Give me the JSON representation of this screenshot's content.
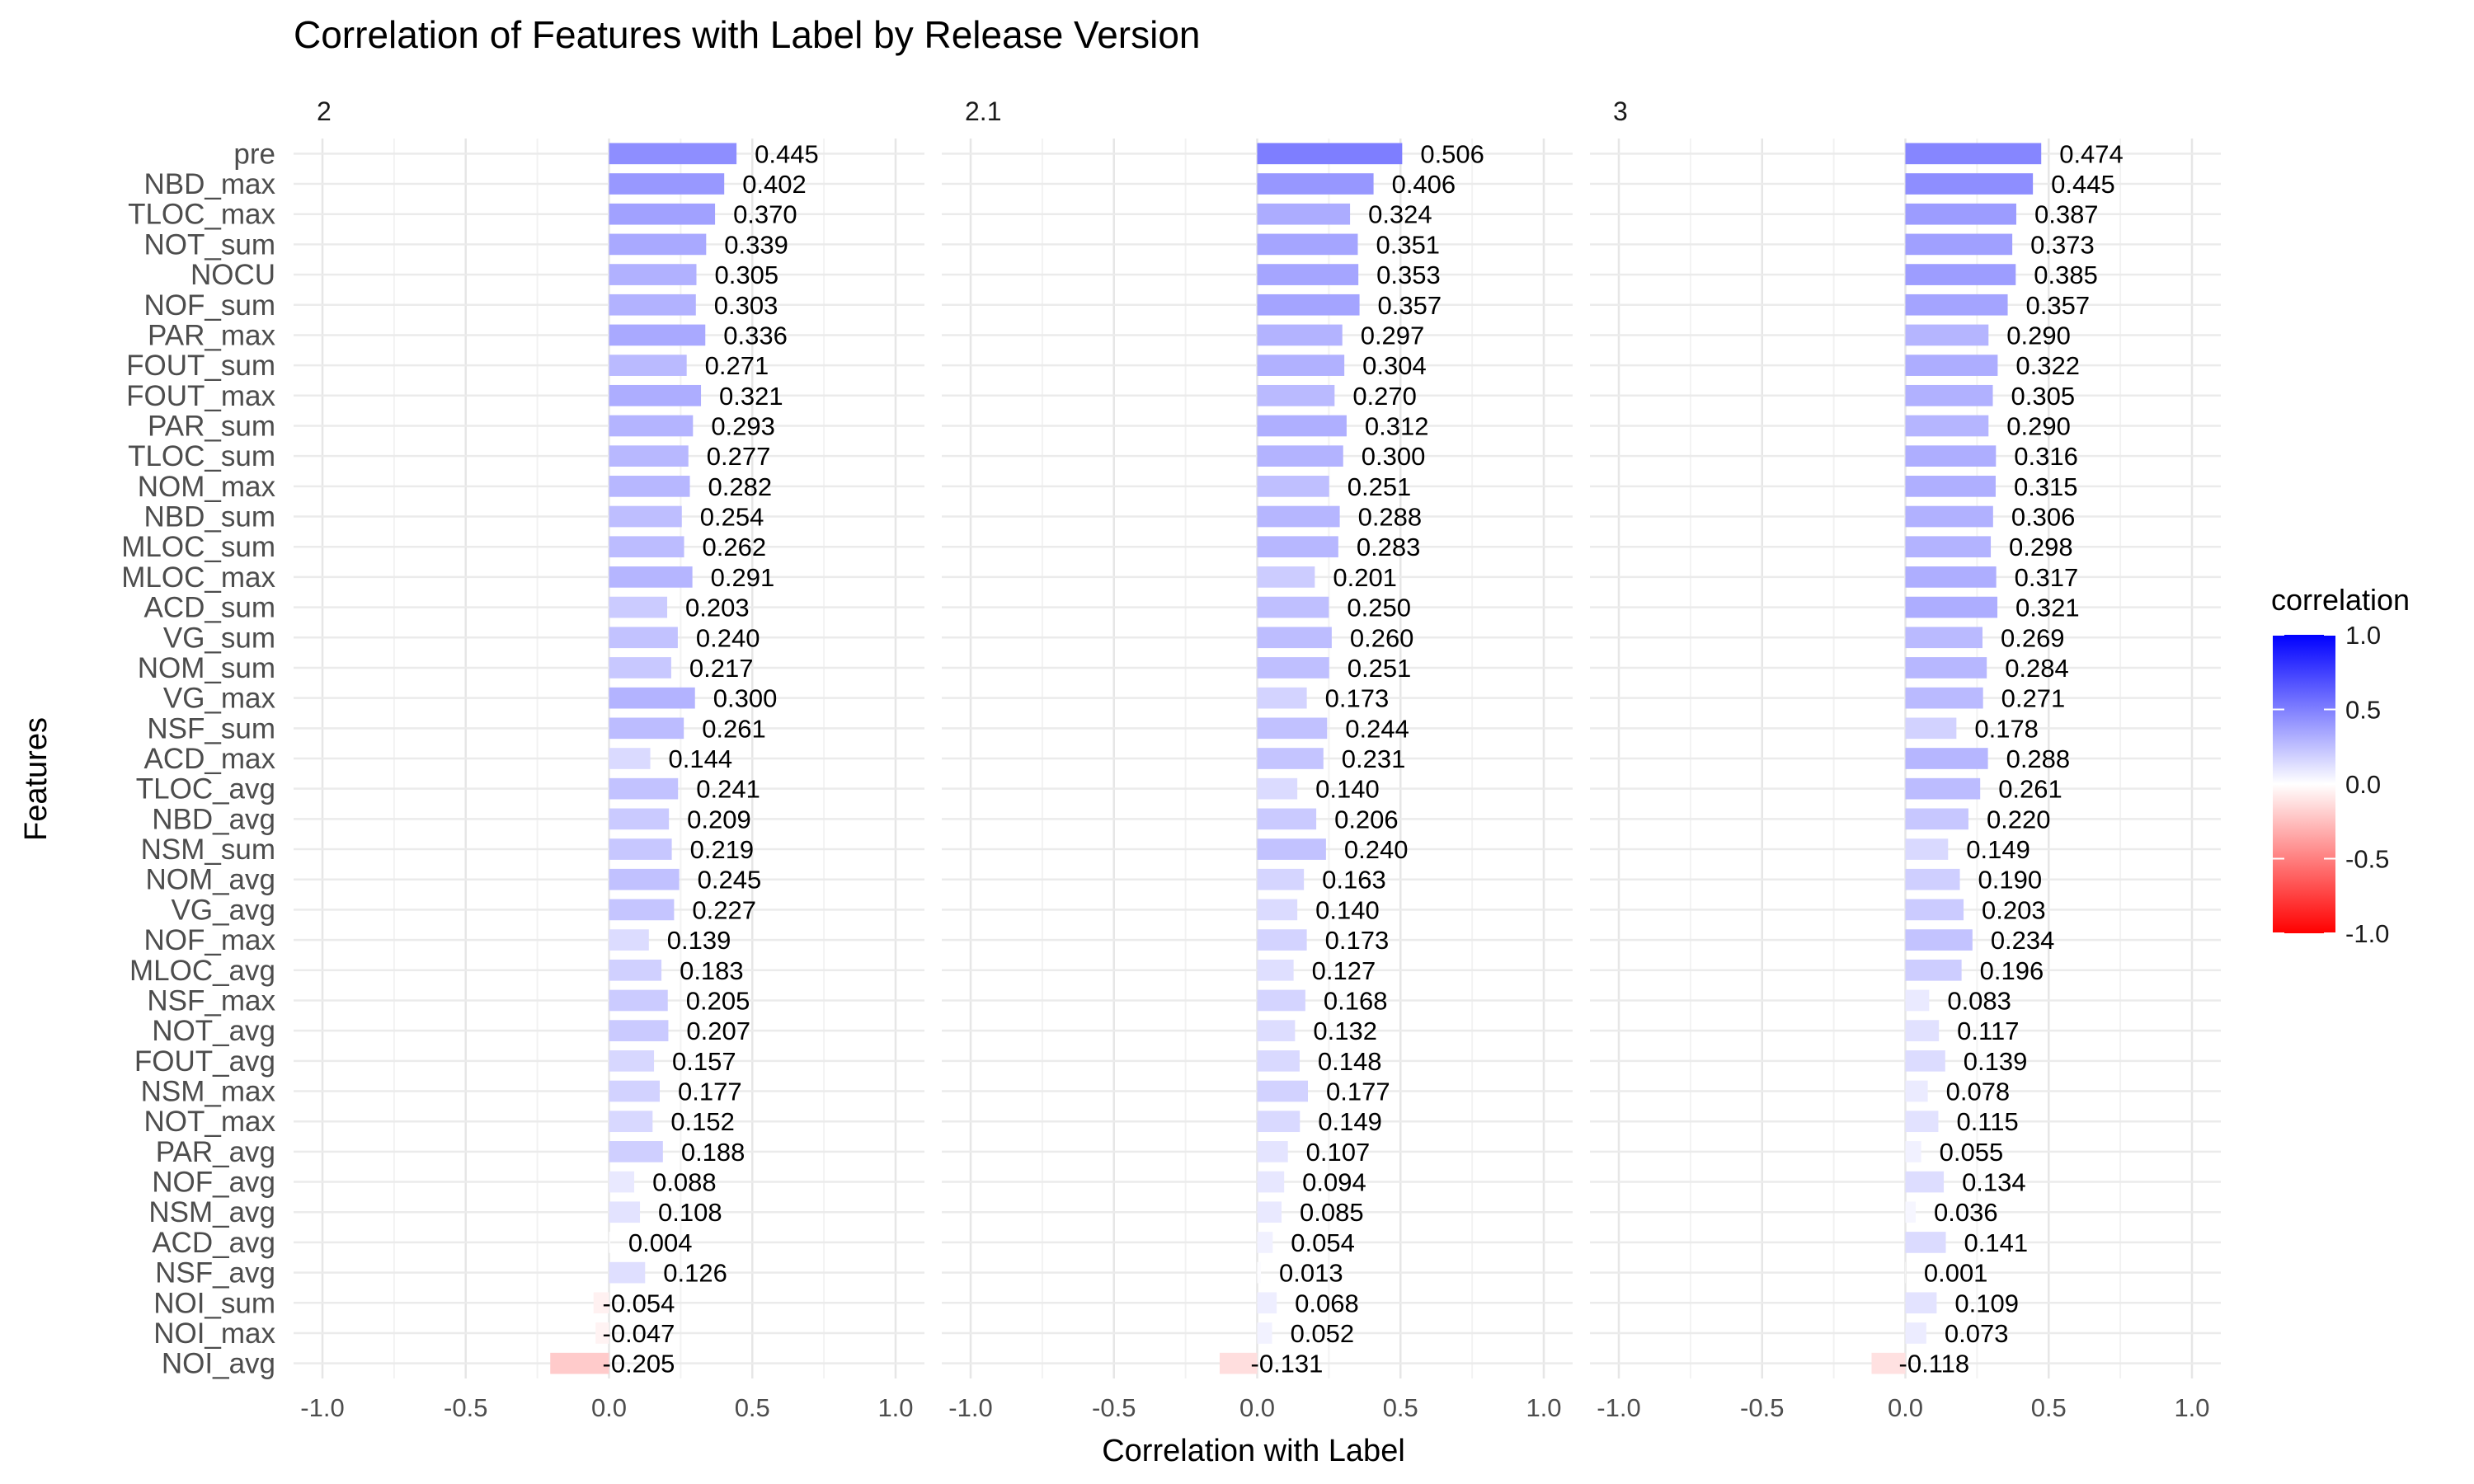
{
  "chart_data": {
    "type": "bar",
    "orientation": "horizontal",
    "title": "Correlation of Features with Label by Release Version",
    "xlabel": "Correlation with Label",
    "ylabel": "Features",
    "xlim": [
      -1.0,
      1.0
    ],
    "x_ticks": [
      "-1.0",
      "-0.5",
      "0.0",
      "0.5",
      "1.0"
    ],
    "x_tick_values": [
      -1.0,
      -0.5,
      0.0,
      0.5,
      1.0
    ],
    "grid": true,
    "legend_position": "right",
    "legend": {
      "title": "correlation",
      "labels": [
        "1.0",
        "0.5",
        "0.0",
        "-0.5",
        "-1.0"
      ],
      "label_values": [
        1.0,
        0.5,
        0.0,
        -0.5,
        -1.0
      ],
      "low_color": "#ff0000",
      "mid_color": "#ffffff",
      "high_color": "#0000ff"
    },
    "categories": [
      "pre",
      "NBD_max",
      "TLOC_max",
      "NOT_sum",
      "NOCU",
      "NOF_sum",
      "PAR_max",
      "FOUT_sum",
      "FOUT_max",
      "PAR_sum",
      "TLOC_sum",
      "NOM_max",
      "NBD_sum",
      "MLOC_sum",
      "MLOC_max",
      "ACD_sum",
      "VG_sum",
      "NOM_sum",
      "VG_max",
      "NSF_sum",
      "ACD_max",
      "TLOC_avg",
      "NBD_avg",
      "NSM_sum",
      "NOM_avg",
      "VG_avg",
      "NOF_max",
      "MLOC_avg",
      "NSF_max",
      "NOT_avg",
      "FOUT_avg",
      "NSM_max",
      "NOT_max",
      "PAR_avg",
      "NOF_avg",
      "NSM_avg",
      "ACD_avg",
      "NSF_avg",
      "NOI_sum",
      "NOI_max",
      "NOI_avg"
    ],
    "series": [
      {
        "name": "2",
        "values": [
          0.445,
          0.402,
          0.37,
          0.339,
          0.305,
          0.303,
          0.336,
          0.271,
          0.321,
          0.293,
          0.277,
          0.282,
          0.254,
          0.262,
          0.291,
          0.203,
          0.24,
          0.217,
          0.3,
          0.261,
          0.144,
          0.241,
          0.209,
          0.219,
          0.245,
          0.227,
          0.139,
          0.183,
          0.205,
          0.207,
          0.157,
          0.177,
          0.152,
          0.188,
          0.088,
          0.108,
          0.004,
          0.126,
          -0.054,
          -0.047,
          -0.205
        ],
        "labels": [
          "0.445",
          "0.402",
          "0.370",
          "0.339",
          "0.305",
          "0.303",
          "0.336",
          "0.271",
          "0.321",
          "0.293",
          "0.277",
          "0.282",
          "0.254",
          "0.262",
          "0.291",
          "0.203",
          "0.240",
          "0.217",
          "0.300",
          "0.261",
          "0.144",
          "0.241",
          "0.209",
          "0.219",
          "0.245",
          "0.227",
          "0.139",
          "0.183",
          "0.205",
          "0.207",
          "0.157",
          "0.177",
          "0.152",
          "0.188",
          "0.088",
          "0.108",
          "0.004",
          "0.126",
          "-0.054",
          "-0.047",
          "-0.205"
        ]
      },
      {
        "name": "2.1",
        "values": [
          0.506,
          0.406,
          0.324,
          0.351,
          0.353,
          0.357,
          0.297,
          0.304,
          0.27,
          0.312,
          0.3,
          0.251,
          0.288,
          0.283,
          0.201,
          0.25,
          0.26,
          0.251,
          0.173,
          0.244,
          0.231,
          0.14,
          0.206,
          0.24,
          0.163,
          0.14,
          0.173,
          0.127,
          0.168,
          0.132,
          0.148,
          0.177,
          0.149,
          0.107,
          0.094,
          0.085,
          0.054,
          0.013,
          0.068,
          0.052,
          -0.131
        ],
        "labels": [
          "0.506",
          "0.406",
          "0.324",
          "0.351",
          "0.353",
          "0.357",
          "0.297",
          "0.304",
          "0.270",
          "0.312",
          "0.300",
          "0.251",
          "0.288",
          "0.283",
          "0.201",
          "0.250",
          "0.260",
          "0.251",
          "0.173",
          "0.244",
          "0.231",
          "0.140",
          "0.206",
          "0.240",
          "0.163",
          "0.140",
          "0.173",
          "0.127",
          "0.168",
          "0.132",
          "0.148",
          "0.177",
          "0.149",
          "0.107",
          "0.094",
          "0.085",
          "0.054",
          "0.013",
          "0.068",
          "0.052",
          "-0.131"
        ]
      },
      {
        "name": "3",
        "values": [
          0.474,
          0.445,
          0.387,
          0.373,
          0.385,
          0.357,
          0.29,
          0.322,
          0.305,
          0.29,
          0.316,
          0.315,
          0.306,
          0.298,
          0.317,
          0.321,
          0.269,
          0.284,
          0.271,
          0.178,
          0.288,
          0.261,
          0.22,
          0.149,
          0.19,
          0.203,
          0.234,
          0.196,
          0.083,
          0.117,
          0.139,
          0.078,
          0.115,
          0.055,
          0.134,
          0.036,
          0.141,
          0.001,
          0.109,
          0.073,
          -0.118
        ],
        "labels": [
          "0.474",
          "0.445",
          "0.387",
          "0.373",
          "0.385",
          "0.357",
          "0.290",
          "0.322",
          "0.305",
          "0.290",
          "0.316",
          "0.315",
          "0.306",
          "0.298",
          "0.317",
          "0.321",
          "0.269",
          "0.284",
          "0.271",
          "0.178",
          "0.288",
          "0.261",
          "0.220",
          "0.149",
          "0.190",
          "0.203",
          "0.234",
          "0.196",
          "0.083",
          "0.117",
          "0.139",
          "0.078",
          "0.115",
          "0.055",
          "0.134",
          "0.036",
          "0.141",
          "0.001",
          "0.109",
          "0.073",
          "-0.118"
        ]
      }
    ]
  }
}
